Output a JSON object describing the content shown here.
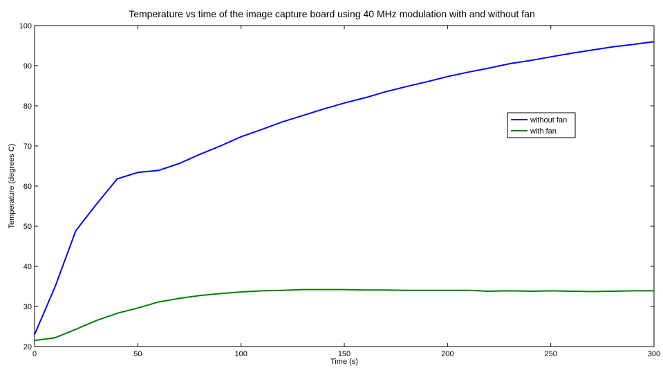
{
  "chart_data": {
    "type": "line",
    "title": "Temperature vs time of the image capture board using 40 MHz modulation with and without fan",
    "xlabel": "Time (s)",
    "ylabel": "Temperature (degrees C)",
    "xlim": [
      0,
      300
    ],
    "ylim": [
      20,
      100
    ],
    "xticks": [
      0,
      50,
      100,
      150,
      200,
      250,
      300
    ],
    "yticks": [
      20,
      30,
      40,
      50,
      60,
      70,
      80,
      90,
      100
    ],
    "grid": false,
    "legend_position": "center-right",
    "x": [
      0,
      10,
      20,
      30,
      40,
      50,
      60,
      70,
      80,
      90,
      100,
      110,
      120,
      130,
      140,
      150,
      160,
      170,
      180,
      190,
      200,
      210,
      220,
      230,
      240,
      250,
      260,
      270,
      280,
      290,
      300
    ],
    "series": [
      {
        "name": "without fan",
        "color": "#0000ff",
        "values": [
          23.0,
          35.0,
          48.9,
          55.5,
          61.8,
          63.4,
          63.9,
          65.6,
          67.9,
          70.0,
          72.3,
          74.1,
          76.0,
          77.6,
          79.2,
          80.7,
          82.0,
          83.5,
          84.8,
          86.0,
          87.3,
          88.4,
          89.4,
          90.5,
          91.3,
          92.2,
          93.1,
          93.9,
          94.7,
          95.3,
          96.0
        ]
      },
      {
        "name": "with fan",
        "color": "#008000",
        "values": [
          21.5,
          22.2,
          24.3,
          26.5,
          28.3,
          29.6,
          31.1,
          32.0,
          32.7,
          33.2,
          33.6,
          33.9,
          34.0,
          34.2,
          34.2,
          34.2,
          34.1,
          34.1,
          34.0,
          34.0,
          34.0,
          34.0,
          33.8,
          33.9,
          33.8,
          33.9,
          33.8,
          33.7,
          33.8,
          33.9,
          33.9
        ]
      }
    ]
  }
}
